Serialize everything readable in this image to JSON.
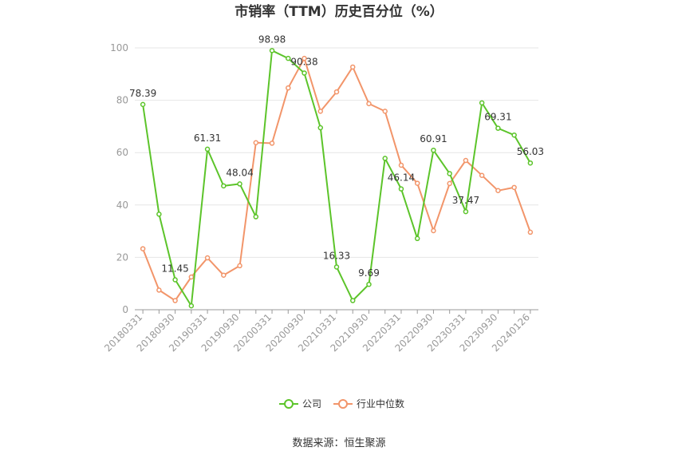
{
  "chart_data": {
    "type": "line",
    "title": "市销率（TTM）历史百分位（%）",
    "xlabel": "",
    "ylabel": "",
    "ylim": [
      0,
      100
    ],
    "yticks": [
      0,
      20,
      40,
      60,
      80,
      100
    ],
    "grid": true,
    "legend_position": "bottom",
    "x_tick_labels": [
      "20180331",
      "20180930",
      "20190331",
      "20190930",
      "20200331",
      "20200930",
      "20210331",
      "20210930",
      "20220331",
      "20220930",
      "20230331",
      "20230930",
      "20240126"
    ],
    "series": [
      {
        "name": "公司",
        "color": "#5cc42a",
        "values": [
          78.39,
          36.5,
          11.45,
          1.5,
          61.31,
          47.3,
          48.04,
          35.5,
          98.98,
          96.0,
          90.38,
          69.5,
          16.33,
          3.5,
          9.69,
          57.8,
          46.14,
          27.2,
          60.91,
          52.0,
          37.47,
          79.0,
          69.31,
          66.7,
          56.03
        ]
      },
      {
        "name": "行业中位数",
        "color": "#f2956a",
        "values": [
          23.3,
          7.5,
          3.5,
          12.5,
          19.8,
          13.2,
          16.8,
          63.8,
          63.6,
          84.7,
          96.0,
          75.8,
          83.2,
          92.7,
          78.7,
          75.8,
          55.2,
          48.3,
          30.2,
          48.2,
          57.0,
          51.3,
          45.5,
          46.7,
          29.6
        ]
      }
    ],
    "data_labels": [
      {
        "index": 0,
        "text": "78.39"
      },
      {
        "index": 2,
        "text": "11.45"
      },
      {
        "index": 4,
        "text": "61.31"
      },
      {
        "index": 6,
        "text": "48.04"
      },
      {
        "index": 8,
        "text": "98.98"
      },
      {
        "index": 10,
        "text": "90.38"
      },
      {
        "index": 12,
        "text": "16.33"
      },
      {
        "index": 14,
        "text": "9.69"
      },
      {
        "index": 16,
        "text": "46.14"
      },
      {
        "index": 18,
        "text": "60.91"
      },
      {
        "index": 20,
        "text": "37.47"
      },
      {
        "index": 22,
        "text": "69.31"
      },
      {
        "index": 24,
        "text": "56.03"
      }
    ]
  },
  "footer": {
    "source": "数据来源：恒生聚源"
  }
}
